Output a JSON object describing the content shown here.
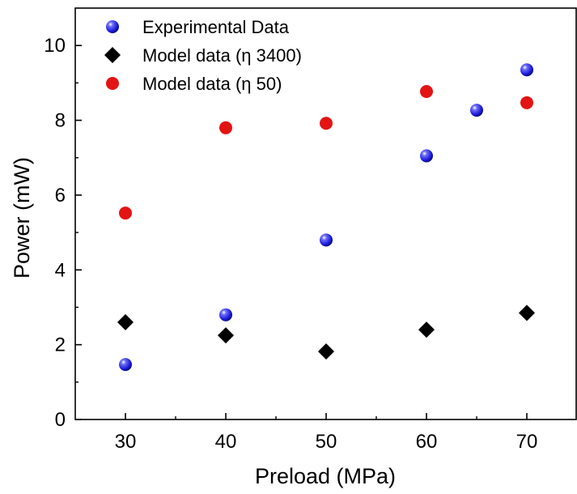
{
  "chart_data": {
    "type": "scatter",
    "title": "",
    "xlabel": "Preload (MPa)",
    "ylabel": "Power (mW)",
    "xlim": [
      25,
      75
    ],
    "ylim": [
      0,
      11
    ],
    "x_ticks": [
      30,
      40,
      50,
      60,
      70
    ],
    "y_ticks": [
      0,
      2,
      4,
      6,
      8,
      10
    ],
    "x_tick_labels": [
      "30",
      "40",
      "50",
      "60",
      "70"
    ],
    "y_tick_labels": [
      "0",
      "2",
      "4",
      "6",
      "8",
      "10"
    ],
    "grid": false,
    "legend_position": "top-left",
    "series": [
      {
        "name": "Experimental Data",
        "marker": "circle",
        "color": "#1a1adb",
        "x": [
          30,
          40,
          50,
          60,
          65,
          70
        ],
        "y": [
          1.47,
          2.8,
          4.8,
          7.05,
          8.27,
          9.35
        ]
      },
      {
        "name": "Model data (η 3400)",
        "marker": "diamond",
        "color": "#000000",
        "x": [
          30,
          40,
          50,
          60,
          70
        ],
        "y": [
          2.6,
          2.25,
          1.82,
          2.4,
          2.85
        ]
      },
      {
        "name": "Model data (η 50)",
        "marker": "circle",
        "color": "#e31414",
        "x": [
          30,
          40,
          50,
          60,
          70
        ],
        "y": [
          5.52,
          7.8,
          7.92,
          8.77,
          8.47
        ]
      }
    ]
  }
}
